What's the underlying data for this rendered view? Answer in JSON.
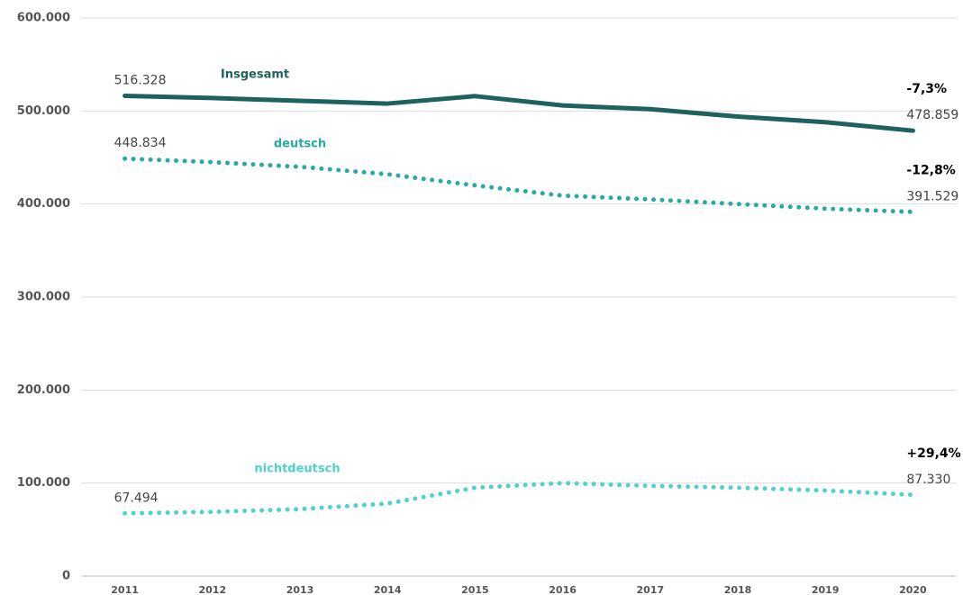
{
  "chart_data": {
    "type": "line",
    "x": [
      2011,
      2012,
      2013,
      2014,
      2015,
      2016,
      2017,
      2018,
      2019,
      2020
    ],
    "xlim": [
      2010.5,
      2020.5
    ],
    "ylim": [
      0,
      600000
    ],
    "yticks": [
      0,
      {
        "value": 100000,
        "label": "100.000"
      },
      {
        "value": 200000,
        "label": "200.000"
      },
      {
        "value": 300000,
        "label": "300.000"
      },
      {
        "value": 400000,
        "label": "400.000"
      },
      {
        "value": 500000,
        "label": "500.000"
      },
      {
        "value": 600000,
        "label": "600.000"
      }
    ],
    "grid": true,
    "series": [
      {
        "name": "Insgesamt",
        "color": "#1d625f",
        "style": "solid",
        "change_label": "-7,3%",
        "values": [
          516328,
          514000,
          511000,
          508000,
          516000,
          506000,
          502000,
          494000,
          488000,
          478859
        ],
        "value_labels": [
          "516.328",
          null,
          null,
          null,
          null,
          null,
          null,
          null,
          null,
          "478.859"
        ]
      },
      {
        "name": "deutsch",
        "color": "#27aaa4",
        "style": "dotted",
        "change_label": "-12,8%",
        "values": [
          448834,
          445000,
          440000,
          432000,
          420000,
          409000,
          405000,
          400000,
          395000,
          391529
        ],
        "value_labels": [
          "448.834",
          null,
          null,
          null,
          null,
          null,
          null,
          null,
          null,
          "391.529"
        ]
      },
      {
        "name": "nichtdeutsch",
        "color": "#4fd2cc",
        "style": "dotted",
        "change_label": "+29,4%",
        "values": [
          67494,
          69000,
          72000,
          78000,
          95000,
          100000,
          97000,
          95000,
          92000,
          87330
        ],
        "value_labels": [
          "67.494",
          null,
          null,
          null,
          null,
          null,
          null,
          null,
          null,
          "87.330"
        ]
      }
    ]
  }
}
